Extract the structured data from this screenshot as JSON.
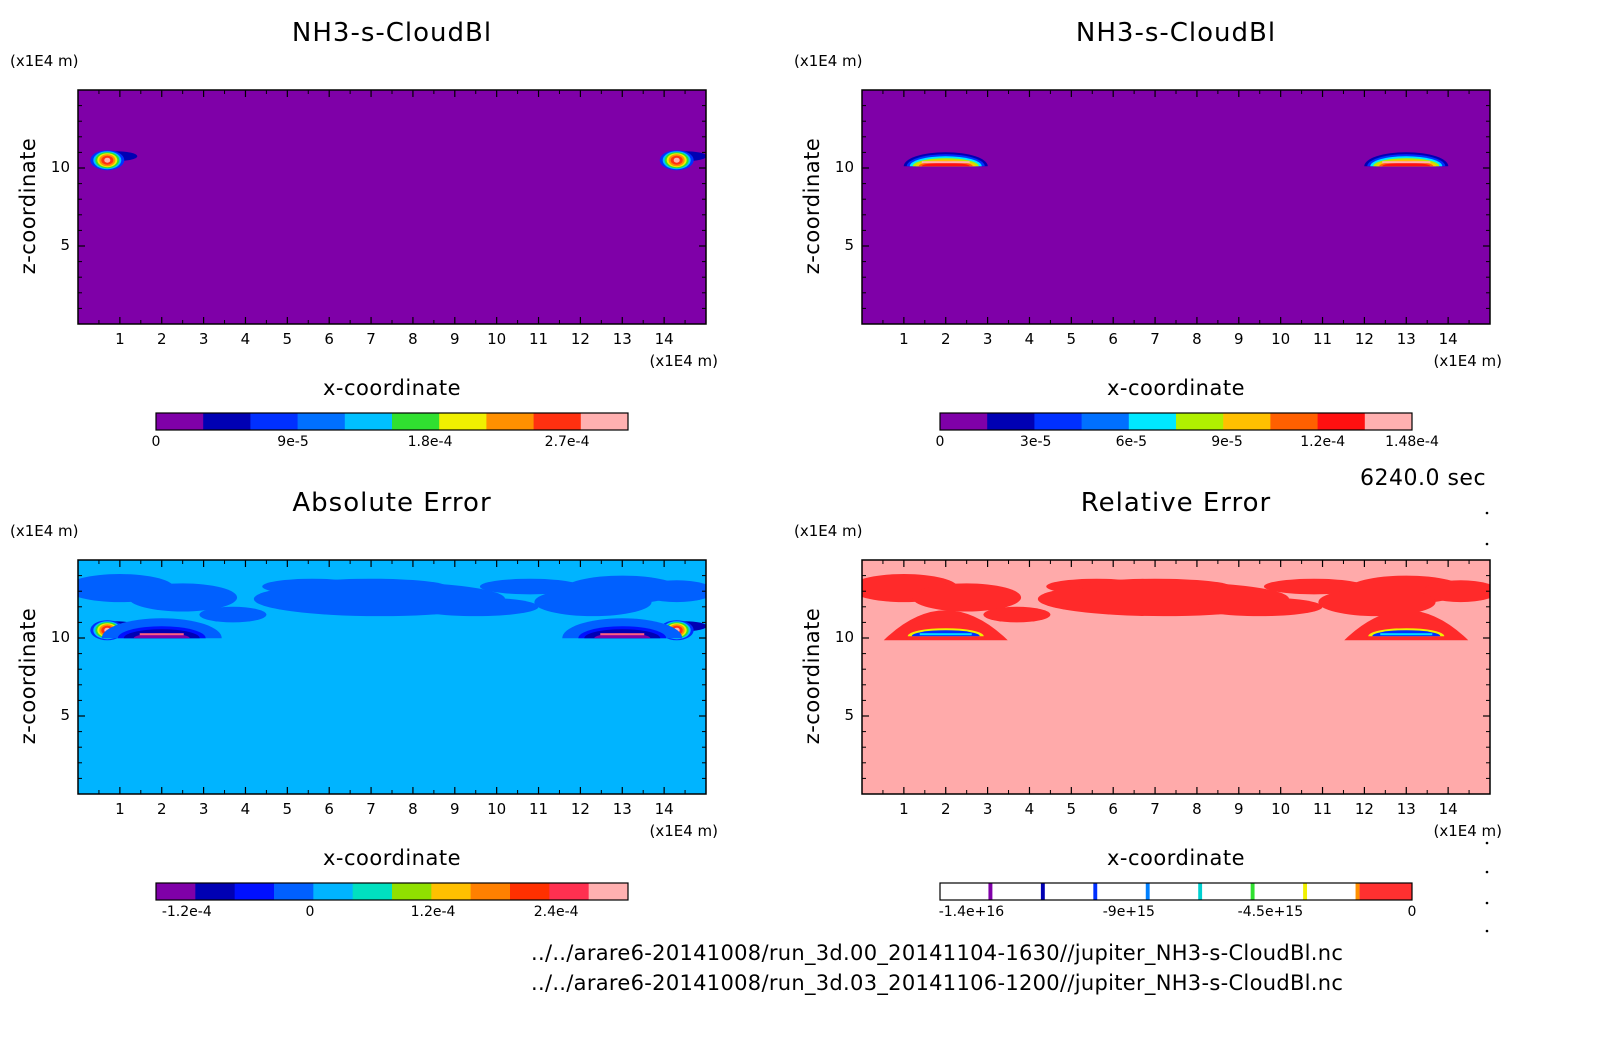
{
  "time_label": "6240.0 sec",
  "footer": {
    "line1": "../../arare6-20141008/run_3d.00_20141104-1630//jupiter_NH3-s-CloudBl.nc",
    "line2": "../../arare6-20141008/run_3d.03_20141106-1200//jupiter_NH3-s-CloudBl.nc"
  },
  "chart_data": [
    {
      "type": "heatmap",
      "title": "NH3-s-CloudBl",
      "xlabel": "x-coordinate",
      "ylabel": "z-coordinate",
      "x_unit": "(x1E4 m)",
      "y_unit": "(x1E4 m)",
      "xlim": [
        0,
        15
      ],
      "ylim": [
        0,
        15
      ],
      "x_ticks": [
        "1",
        "2",
        "3",
        "4",
        "5",
        "6",
        "7",
        "8",
        "9",
        "10",
        "11",
        "12",
        "13",
        "14"
      ],
      "y_ticks": [
        "5",
        "10"
      ],
      "background_color": "#7f00a8",
      "colorbar": {
        "colors": [
          "#7f00a8",
          "#0000b3",
          "#0030ff",
          "#0070ff",
          "#00c0ff",
          "#30e030",
          "#f0f000",
          "#ff9000",
          "#ff3010",
          "#ffb0b0"
        ],
        "tick_labels": [
          "0",
          "9e-5",
          "1.8e-4",
          "2.7e-4"
        ],
        "tick_values": [
          0,
          9e-05,
          0.00018,
          0.00027
        ],
        "range": [
          0,
          0.00031
        ]
      },
      "features": [
        {
          "x": 0.7,
          "z": 10.5,
          "peak": 0.0003
        },
        {
          "x": 14.3,
          "z": 10.5,
          "peak": 0.0003
        }
      ]
    },
    {
      "type": "heatmap",
      "title": "NH3-s-CloudBl",
      "xlabel": "x-coordinate",
      "ylabel": "z-coordinate",
      "x_unit": "(x1E4 m)",
      "y_unit": "(x1E4 m)",
      "xlim": [
        0,
        15
      ],
      "ylim": [
        0,
        15
      ],
      "x_ticks": [
        "1",
        "2",
        "3",
        "4",
        "5",
        "6",
        "7",
        "8",
        "9",
        "10",
        "11",
        "12",
        "13",
        "14"
      ],
      "y_ticks": [
        "5",
        "10"
      ],
      "background_color": "#7f00a8",
      "colorbar": {
        "colors": [
          "#7f00a8",
          "#0000b3",
          "#0030ff",
          "#0070ff",
          "#00e8ff",
          "#b0f000",
          "#ffc000",
          "#ff6000",
          "#ff1010",
          "#ffb0b0"
        ],
        "tick_labels": [
          "0",
          "3e-5",
          "6e-5",
          "9e-5",
          "1.2e-4",
          "1.48e-4"
        ],
        "tick_values": [
          0,
          3e-05,
          6e-05,
          9e-05,
          0.00012,
          0.000148
        ],
        "range": [
          0,
          0.000148
        ]
      },
      "features": [
        {
          "x": 2.0,
          "z": 10.5,
          "peak": 0.000148
        },
        {
          "x": 13.0,
          "z": 10.5,
          "peak": 0.000148
        }
      ]
    },
    {
      "type": "heatmap",
      "title": "Absolute Error",
      "xlabel": "x-coordinate",
      "ylabel": "z-coordinate",
      "x_unit": "(x1E4 m)",
      "y_unit": "(x1E4 m)",
      "xlim": [
        0,
        15
      ],
      "ylim": [
        0,
        15
      ],
      "x_ticks": [
        "1",
        "2",
        "3",
        "4",
        "5",
        "6",
        "7",
        "8",
        "9",
        "10",
        "11",
        "12",
        "13",
        "14"
      ],
      "y_ticks": [
        "5",
        "10"
      ],
      "background_color": "#00b4ff",
      "colorbar": {
        "colors": [
          "#7f00a8",
          "#0000b3",
          "#0010ff",
          "#0060ff",
          "#00b4ff",
          "#00e0c0",
          "#90e000",
          "#ffc000",
          "#ff8000",
          "#ff3000",
          "#ff3050",
          "#ffb0b0"
        ],
        "tick_labels": [
          "-1.2e-4",
          "0",
          "1.2e-4",
          "2.4e-4"
        ],
        "tick_values": [
          -0.00012,
          0,
          0.00012,
          0.00024
        ],
        "range": [
          -0.00015,
          0.00031
        ]
      },
      "features": [
        {
          "x": 0.7,
          "z": 10.5,
          "peak": 0.0003
        },
        {
          "x": 14.3,
          "z": 10.5,
          "peak": 0.0003
        },
        {
          "x": 2.0,
          "z": 10.5,
          "peak": -0.000148
        },
        {
          "x": 13.0,
          "z": 10.5,
          "peak": -0.000148
        }
      ]
    },
    {
      "type": "heatmap",
      "title": "Relative Error",
      "xlabel": "x-coordinate",
      "ylabel": "z-coordinate",
      "x_unit": "(x1E4 m)",
      "y_unit": "(x1E4 m)",
      "xlim": [
        0,
        15
      ],
      "ylim": [
        0,
        15
      ],
      "x_ticks": [
        "1",
        "2",
        "3",
        "4",
        "5",
        "6",
        "7",
        "8",
        "9",
        "10",
        "11",
        "12",
        "13",
        "14"
      ],
      "y_ticks": [
        "5",
        "10"
      ],
      "background_color": "#ffaaaa",
      "colorbar": {
        "colors": [
          "#ffffff",
          "#7f00a8",
          "#ffffff",
          "#0000b3",
          "#ffffff",
          "#0030ff",
          "#ffffff",
          "#0080ff",
          "#ffffff",
          "#00d0d0",
          "#ffffff",
          "#30e030",
          "#ffffff",
          "#f0f000",
          "#ffffff",
          "#ff9000",
          "#ffffff",
          "#ff3030"
        ],
        "tick_labels": [
          "-1.4e+16",
          "-9e+15",
          "-4.5e+15",
          "0"
        ],
        "tick_values": [
          -1.4e+16,
          -9000000000000000.0,
          -4500000000000000.0,
          0
        ],
        "range": [
          -1.5e+16,
          0
        ]
      },
      "features": [
        {
          "x": 2.0,
          "z": 10.5
        },
        {
          "x": 13.0,
          "z": 10.5
        }
      ]
    }
  ]
}
